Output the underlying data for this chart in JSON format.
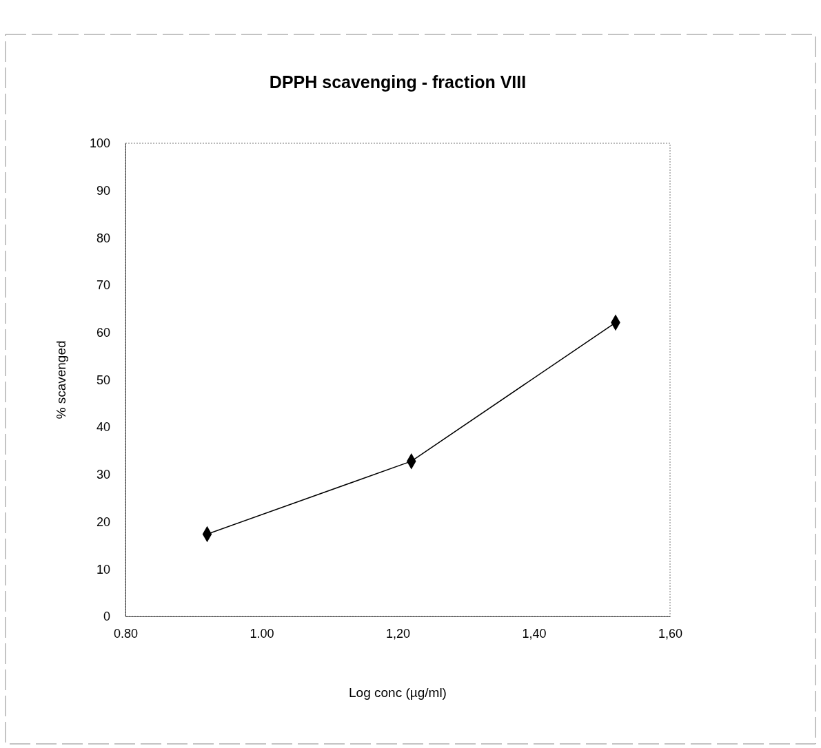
{
  "chart_data": {
    "type": "line",
    "title": "DPPH scavenging - fraction VIII",
    "xlabel": "Log conc (µg/ml)",
    "ylabel": "% scavenged",
    "x": [
      0.92,
      1.22,
      1.52
    ],
    "series": [
      {
        "color": "#000000",
        "values": [
          17.4,
          32.8,
          62.1
        ]
      }
    ],
    "xlim": [
      0.8,
      1.6
    ],
    "xticks": [
      {
        "value": 0.8,
        "label": "0.80"
      },
      {
        "value": 1.0,
        "label": "1.00"
      },
      {
        "value": 1.2,
        "label": "1,20"
      },
      {
        "value": 1.4,
        "label": "1,40"
      },
      {
        "value": 1.6,
        "label": "1,60"
      }
    ],
    "ylim": [
      0,
      100
    ],
    "yticks": [
      0,
      10,
      20,
      30,
      40,
      50,
      60,
      70,
      80,
      90,
      100
    ],
    "marker": "diamond",
    "line_style": "solid",
    "grid": false
  }
}
